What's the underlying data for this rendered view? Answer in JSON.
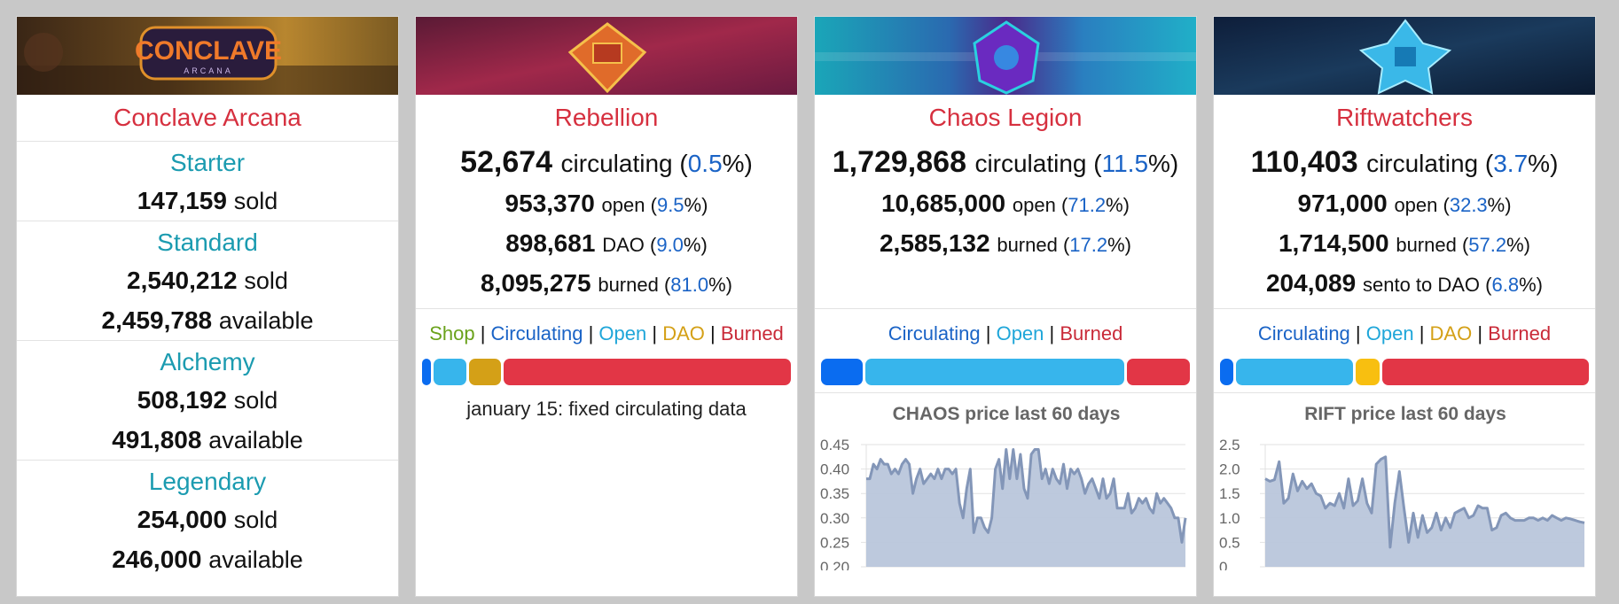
{
  "cards": [
    {
      "title": "Conclave Arcana",
      "banner_logo_text": "CONCLAVE",
      "banner_logo_sub": "ARCANA",
      "packs": [
        {
          "name": "Starter",
          "sold": "147,159",
          "sold_label": "sold"
        },
        {
          "name": "Standard",
          "sold": "2,540,212",
          "sold_label": "sold",
          "available": "2,459,788",
          "available_label": "available"
        },
        {
          "name": "Alchemy",
          "sold": "508,192",
          "sold_label": "sold",
          "available": "491,808",
          "available_label": "available"
        },
        {
          "name": "Legendary",
          "sold": "254,000",
          "sold_label": "sold",
          "available": "246,000",
          "available_label": "available"
        }
      ]
    },
    {
      "title": "Rebellion",
      "circulating": {
        "value": "52,674",
        "label": "circulating",
        "pct": "0.5"
      },
      "stats": [
        {
          "value": "953,370",
          "label": "open",
          "pct": "9.5"
        },
        {
          "value": "898,681",
          "label": "DAO",
          "pct": "9.0"
        },
        {
          "value": "8,095,275",
          "label": "burned",
          "pct": "81.0"
        }
      ],
      "legend": [
        "Shop",
        "Circulating",
        "Open",
        "DAO",
        "Burned"
      ],
      "note": "january 15: fixed circulating data",
      "bar": [
        {
          "name": "Shop",
          "fraction": 0.0,
          "color": "#6aa21b"
        },
        {
          "name": "Circulating",
          "fraction": 0.005,
          "color": "#0a6cf0"
        },
        {
          "name": "Open",
          "fraction": 0.095,
          "color": "#37b5ec"
        },
        {
          "name": "DAO",
          "fraction": 0.09,
          "color": "#d4a017"
        },
        {
          "name": "Burned",
          "fraction": 0.81,
          "color": "#e23646"
        }
      ]
    },
    {
      "title": "Chaos Legion",
      "circulating": {
        "value": "1,729,868",
        "label": "circulating",
        "pct": "11.5"
      },
      "stats": [
        {
          "value": "10,685,000",
          "label": "open",
          "pct": "71.2"
        },
        {
          "value": "2,585,132",
          "label": "burned",
          "pct": "17.2"
        }
      ],
      "legend": [
        "Circulating",
        "Open",
        "Burned"
      ],
      "bar": [
        {
          "name": "Circulating",
          "fraction": 0.115,
          "color": "#0a6cf0"
        },
        {
          "name": "Open",
          "fraction": 0.712,
          "color": "#37b5ec"
        },
        {
          "name": "Burned",
          "fraction": 0.172,
          "color": "#e23646"
        }
      ]
    },
    {
      "title": "Riftwatchers",
      "circulating": {
        "value": "110,403",
        "label": "circulating",
        "pct": "3.7"
      },
      "stats": [
        {
          "value": "971,000",
          "label": "open",
          "pct": "32.3"
        },
        {
          "value": "1,714,500",
          "label": "burned",
          "pct": "57.2"
        },
        {
          "value": "204,089",
          "label": "sento to DAO",
          "pct": "6.8"
        }
      ],
      "legend": [
        "Circulating",
        "Open",
        "DAO",
        "Burned"
      ],
      "bar": [
        {
          "name": "Circulating",
          "fraction": 0.037,
          "color": "#0a6cf0"
        },
        {
          "name": "Open",
          "fraction": 0.323,
          "color": "#37b5ec"
        },
        {
          "name": "DAO",
          "fraction": 0.068,
          "color": "#f8bf10"
        },
        {
          "name": "Burned",
          "fraction": 0.572,
          "color": "#e23646"
        }
      ]
    }
  ],
  "chart_data": [
    {
      "type": "area",
      "title": "CHAOS price last 60 days",
      "xlabel": "",
      "ylabel": "",
      "ylim": [
        0.2,
        0.45
      ],
      "yticks": [
        "0.45",
        "0.40",
        "0.35",
        "0.30",
        "0.25",
        "0.20"
      ],
      "ytick_values": [
        0.45,
        0.4,
        0.35,
        0.3,
        0.25,
        0.2
      ],
      "grid": true,
      "values": [
        0.38,
        0.38,
        0.41,
        0.4,
        0.42,
        0.41,
        0.41,
        0.39,
        0.4,
        0.39,
        0.41,
        0.42,
        0.41,
        0.35,
        0.38,
        0.4,
        0.37,
        0.38,
        0.39,
        0.38,
        0.4,
        0.38,
        0.4,
        0.4,
        0.39,
        0.4,
        0.33,
        0.3,
        0.36,
        0.4,
        0.27,
        0.3,
        0.3,
        0.28,
        0.27,
        0.3,
        0.4,
        0.42,
        0.36,
        0.44,
        0.38,
        0.44,
        0.38,
        0.43,
        0.36,
        0.34,
        0.43,
        0.44,
        0.44,
        0.38,
        0.4,
        0.37,
        0.4,
        0.38,
        0.37,
        0.41,
        0.36,
        0.4,
        0.39,
        0.4,
        0.38,
        0.35,
        0.37,
        0.38,
        0.36,
        0.34,
        0.38,
        0.34,
        0.35,
        0.38,
        0.32,
        0.32,
        0.32,
        0.35,
        0.31,
        0.32,
        0.34,
        0.33,
        0.34,
        0.32,
        0.31,
        0.35,
        0.33,
        0.34,
        0.33,
        0.32,
        0.3,
        0.3,
        0.25,
        0.3
      ]
    },
    {
      "type": "area",
      "title": "RIFT price last 60 days",
      "xlabel": "",
      "ylabel": "",
      "ylim": [
        0,
        2.5
      ],
      "yticks": [
        "2.5",
        "2.0",
        "1.5",
        "1.0",
        "0.5",
        "0"
      ],
      "ytick_values": [
        2.5,
        2.0,
        1.5,
        1.0,
        0.5,
        0
      ],
      "grid": true,
      "values": [
        1.8,
        1.75,
        1.78,
        2.15,
        1.3,
        1.4,
        1.9,
        1.55,
        1.75,
        1.6,
        1.7,
        1.5,
        1.45,
        1.2,
        1.3,
        1.25,
        1.5,
        1.2,
        1.8,
        1.25,
        1.35,
        1.8,
        1.3,
        1.1,
        2.1,
        2.2,
        2.25,
        0.4,
        1.3,
        1.95,
        1.2,
        0.5,
        1.1,
        0.6,
        1.05,
        0.7,
        0.8,
        1.1,
        0.75,
        1.0,
        0.8,
        1.1,
        1.15,
        1.2,
        1.0,
        1.05,
        1.25,
        1.2,
        1.2,
        0.75,
        0.8,
        1.05,
        1.1,
        1.0,
        0.95,
        0.95,
        0.95,
        1.0,
        1.0,
        0.95,
        1.0,
        0.95,
        1.05,
        1.0,
        0.95,
        1.0,
        0.98,
        0.95,
        0.92,
        0.9
      ]
    }
  ]
}
